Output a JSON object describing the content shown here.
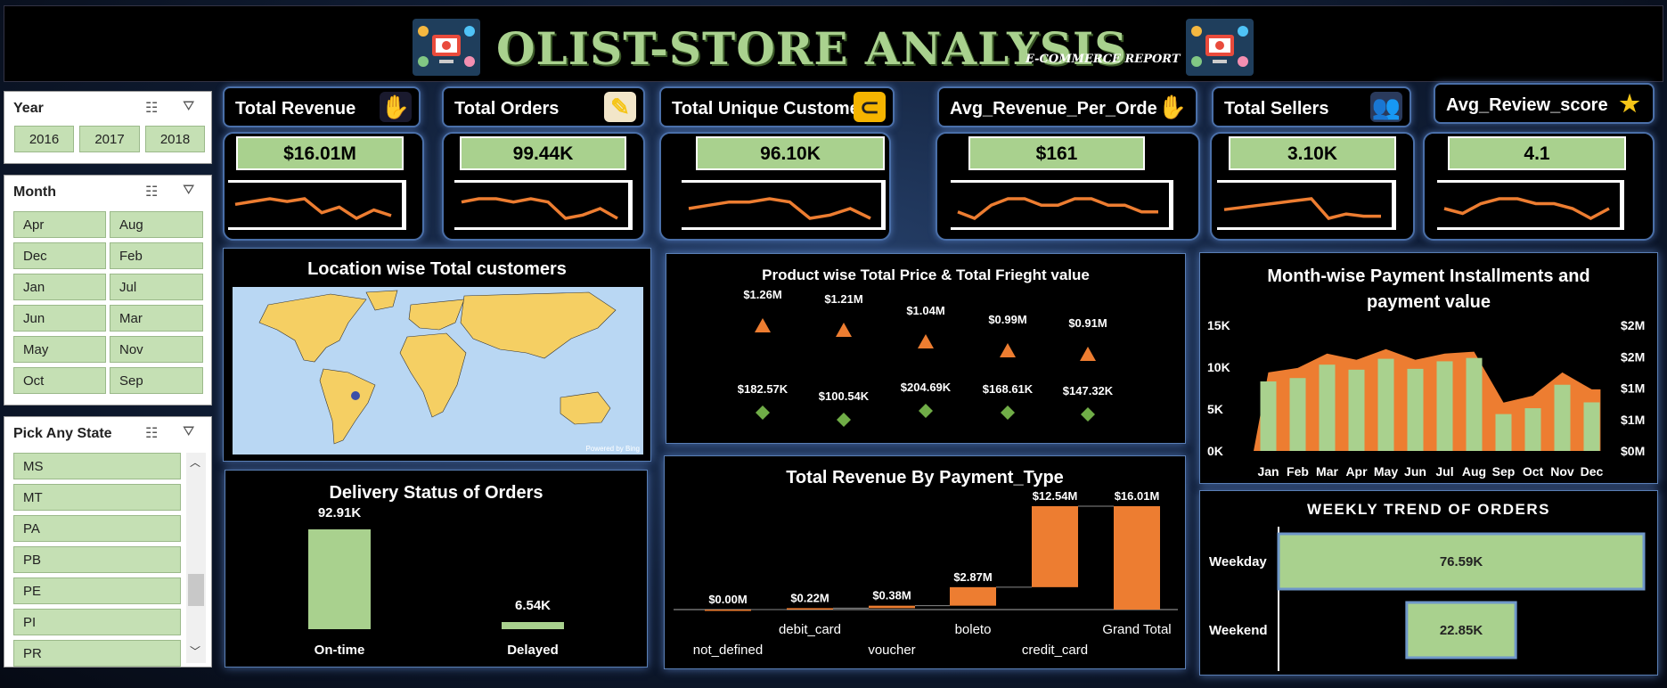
{
  "header": {
    "title": "OLIST-STORE ANALYSIS",
    "subtitle": "E-COMMERCE REPORT",
    "logo_icon": "ecommerce-logo-icon"
  },
  "slicers": {
    "year": {
      "title": "Year",
      "items": [
        "2016",
        "2017",
        "2018"
      ]
    },
    "month": {
      "title": "Month",
      "items": [
        "Apr",
        "Aug",
        "Dec",
        "Feb",
        "Jan",
        "Jul",
        "Jun",
        "Mar",
        "May",
        "Nov",
        "Oct",
        "Sep"
      ]
    },
    "state": {
      "title": "Pick Any State",
      "items": [
        "MS",
        "MT",
        "PA",
        "PB",
        "PE",
        "PI",
        "PR"
      ]
    },
    "multiselect_icon": "multi-select-icon",
    "clear_filter_icon": "clear-filter-icon"
  },
  "kpis": [
    {
      "title": "Total Revenue",
      "value": "$16.01M",
      "icon": "revenue-hand-icon",
      "trend": [
        5,
        6,
        7,
        6,
        7,
        2,
        4,
        0,
        3,
        1
      ]
    },
    {
      "title": "Total Orders",
      "value": "99.44K",
      "icon": "orders-scribble-icon",
      "trend": [
        6,
        7,
        7,
        6,
        7,
        6,
        1,
        2,
        4,
        1
      ]
    },
    {
      "title": "Total Unique Customers",
      "value": "96.10K",
      "icon": "magnet-icon",
      "trend": [
        4,
        5,
        6,
        6,
        7,
        6,
        1,
        2,
        4,
        1
      ]
    },
    {
      "title": "Avg_Revenue_Per_Order",
      "value": "$161",
      "icon": "hand-coins-icon",
      "trend": [
        5,
        4,
        6,
        7,
        7,
        6,
        6,
        7,
        7,
        6,
        6,
        5,
        5
      ]
    },
    {
      "title": "Total Sellers",
      "value": "3.10K",
      "icon": "sellers-people-icon",
      "trend": [
        4,
        5,
        6,
        7,
        8,
        9,
        0,
        2,
        1,
        1
      ]
    },
    {
      "title": "Avg_Review_score",
      "value": "4.1",
      "icon": "star-icon",
      "trend": [
        3,
        2,
        4,
        5,
        5,
        4,
        4,
        3,
        1,
        3
      ]
    }
  ],
  "map": {
    "title": "Location wise Total customers",
    "credit": "Powered by Bing"
  },
  "product_chart": {
    "title": "Product wise Total Price & Total Frieght value"
  },
  "delivery": {
    "title": "Delivery Status of Orders"
  },
  "payment_type": {
    "title": "Total Revenue By Payment_Type"
  },
  "monthwise": {
    "title_line1": "Month-wise Payment Installments and",
    "title_line2": "payment value"
  },
  "weekly": {
    "title": "WEEKLY TREND OF ORDERS"
  },
  "colors": {
    "green": "#a9d18e",
    "orange": "#ed7d31",
    "panel": "#000000",
    "border": "#5a7fb5"
  },
  "chart_data": [
    {
      "type": "scatter",
      "id": "product",
      "title": "Product wise Total Price & Total Frieght value",
      "series": [
        {
          "name": "Total Price",
          "marker": "triangle",
          "values": [
            1.26,
            1.21,
            1.04,
            0.99,
            0.91
          ],
          "labels": [
            "$1.26M",
            "$1.21M",
            "$1.04M",
            "$0.99M",
            "$0.91M"
          ]
        },
        {
          "name": "Total Freight value",
          "marker": "diamond",
          "values": [
            182.57,
            100.54,
            204.69,
            168.61,
            147.32
          ],
          "labels": [
            "$182.57K",
            "$100.54K",
            "$204.69K",
            "$168.61K",
            "$147.32K"
          ]
        }
      ]
    },
    {
      "type": "bar",
      "id": "delivery",
      "title": "Delivery Status of Orders",
      "categories": [
        "On-time",
        "Delayed"
      ],
      "values": [
        92.91,
        6.54
      ],
      "labels": [
        "92.91K",
        "6.54K"
      ],
      "unit": "K"
    },
    {
      "type": "waterfall",
      "id": "payment",
      "title": "Total Revenue By Payment_Type",
      "categories": [
        "not_defined",
        "debit_card",
        "voucher",
        "boleto",
        "credit_card",
        "Grand Total"
      ],
      "values": [
        0.0,
        0.22,
        0.38,
        2.87,
        12.54,
        16.01
      ],
      "labels": [
        "$0.00M",
        "$0.22M",
        "$0.38M",
        "$2.87M",
        "$12.54M",
        "$16.01M"
      ],
      "unit": "$M"
    },
    {
      "type": "bar+area",
      "id": "monthwise",
      "title": "Month-wise Payment Installments and payment value",
      "categories": [
        "Jan",
        "Feb",
        "Mar",
        "Apr",
        "May",
        "Jun",
        "Jul",
        "Aug",
        "Sep",
        "Oct",
        "Nov",
        "Dec"
      ],
      "yticks_left": [
        "0K",
        "5K",
        "10K",
        "15K"
      ],
      "ylim_left": [
        0,
        15000
      ],
      "yticks_right": [
        "$0M",
        "$1M",
        "$1M",
        "$2M",
        "$2M"
      ],
      "ylim_right": [
        0,
        2
      ],
      "series": [
        {
          "name": "Payment Installments",
          "kind": "bar",
          "axis": "left",
          "values": [
            8300,
            8700,
            10300,
            9700,
            11000,
            9800,
            10700,
            11100,
            4400,
            5100,
            7900,
            5800
          ]
        },
        {
          "name": "Payment value",
          "kind": "area",
          "axis": "right",
          "values": [
            1.25,
            1.32,
            1.55,
            1.45,
            1.62,
            1.45,
            1.55,
            1.58,
            0.77,
            0.88,
            1.25,
            0.98
          ]
        }
      ]
    },
    {
      "type": "bar",
      "id": "weekly",
      "orientation": "horizontal",
      "title": "WEEKLY TREND OF ORDERS",
      "categories": [
        "Weekday",
        "Weekend"
      ],
      "values": [
        76.59,
        22.85
      ],
      "labels": [
        "76.59K",
        "22.85K"
      ],
      "unit": "K"
    }
  ]
}
